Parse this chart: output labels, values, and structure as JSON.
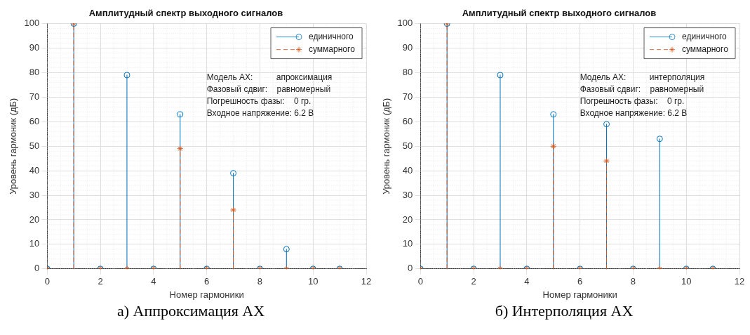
{
  "chart_data": [
    {
      "type": "lollipop",
      "title": "Амплитудный спектр выходного сигналов",
      "xlabel": "Номер гармоники",
      "ylabel": "Уровень гармоник (дБ)",
      "x": [
        0,
        1,
        2,
        3,
        4,
        5,
        6,
        7,
        8,
        9,
        10,
        11
      ],
      "series": [
        {
          "name": "единичного",
          "color": "#0072bd",
          "marker": "circle",
          "line_style": "solid",
          "values": [
            0,
            100,
            0,
            79,
            0,
            63,
            0,
            39,
            0,
            8,
            0,
            0
          ]
        },
        {
          "name": "суммарного",
          "color": "#d95319",
          "marker": "cross",
          "line_style": "dashed",
          "values": [
            0,
            100,
            0,
            0,
            0,
            49,
            0,
            24,
            0,
            0,
            0,
            0
          ]
        }
      ],
      "xlim": [
        0,
        12
      ],
      "xticks": [
        0,
        2,
        4,
        6,
        8,
        10,
        12
      ],
      "ylim": [
        0,
        100
      ],
      "yticks": [
        0,
        10,
        20,
        30,
        40,
        50,
        60,
        70,
        80,
        90,
        100
      ],
      "grid": true,
      "legend": "top right",
      "annotations": [
        "Модель АХ:          апроксимация",
        "Фазовый сдвиг:    равномерный",
        "Погрешность фазы:    0 гр.",
        "Входное напряжение: 6.2 В",
        "а) Аппроксимация АХ"
      ]
    },
    {
      "type": "lollipop",
      "title": "Амплитудный спектр выходного сигналов",
      "xlabel": "Номер гармоники",
      "ylabel": "Уровень гармоник (дБ)",
      "x": [
        0,
        1,
        2,
        3,
        4,
        5,
        6,
        7,
        8,
        9,
        10,
        11
      ],
      "series": [
        {
          "name": "единичного",
          "color": "#0072bd",
          "marker": "circle",
          "line_style": "solid",
          "values": [
            0,
            100,
            0,
            79,
            0,
            63,
            0,
            59,
            0,
            53,
            0,
            0
          ]
        },
        {
          "name": "суммарного",
          "color": "#d95319",
          "marker": "cross",
          "line_style": "dashed",
          "values": [
            0,
            100,
            0,
            0,
            0,
            50,
            0,
            44,
            0,
            0,
            0,
            0
          ]
        }
      ],
      "xlim": [
        0,
        12
      ],
      "xticks": [
        0,
        2,
        4,
        6,
        8,
        10,
        12
      ],
      "ylim": [
        0,
        100
      ],
      "yticks": [
        0,
        10,
        20,
        30,
        40,
        50,
        60,
        70,
        80,
        90,
        100
      ],
      "grid": true,
      "legend": "top right",
      "annotations": [
        "Модель АХ:          интерполяция",
        "Фазовый сдвиг:    равномерный",
        "Погрешность фазы:    0 гр.",
        "Входное напряжение: 6.2 В",
        "б) Интерполяция АХ"
      ]
    }
  ]
}
